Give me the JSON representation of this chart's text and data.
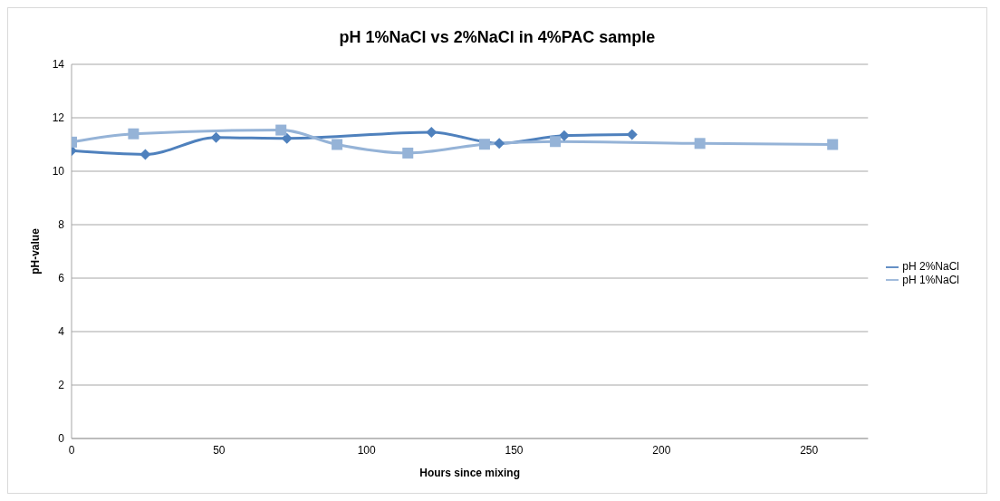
{
  "chart_data": {
    "type": "line",
    "title": "pH 1%NaCl vs 2%NaCl in 4%PAC sample",
    "xlabel": "Hours since mixing",
    "ylabel": "pH-value",
    "xlim": [
      0,
      270
    ],
    "xticks": [
      0,
      50,
      100,
      150,
      200,
      250
    ],
    "ylim": [
      0,
      14
    ],
    "yticks": [
      0,
      2,
      4,
      6,
      8,
      10,
      12,
      14
    ],
    "grid": "y",
    "legend": "right",
    "series": [
      {
        "name": "pH 2%NaCl",
        "color": "#4f81bd",
        "marker": "diamond",
        "x": [
          0,
          25,
          49,
          73,
          122,
          145,
          167,
          190
        ],
        "values": [
          10.77,
          10.63,
          11.26,
          11.23,
          11.46,
          11.04,
          11.33,
          11.37
        ]
      },
      {
        "name": "pH 1%NaCl",
        "color": "#95b3d7",
        "marker": "square",
        "x": [
          0,
          21,
          71,
          90,
          114,
          140,
          164,
          213,
          258
        ],
        "values": [
          11.09,
          11.4,
          11.54,
          11.0,
          10.68,
          11.01,
          11.11,
          11.04,
          11.0
        ]
      }
    ]
  }
}
